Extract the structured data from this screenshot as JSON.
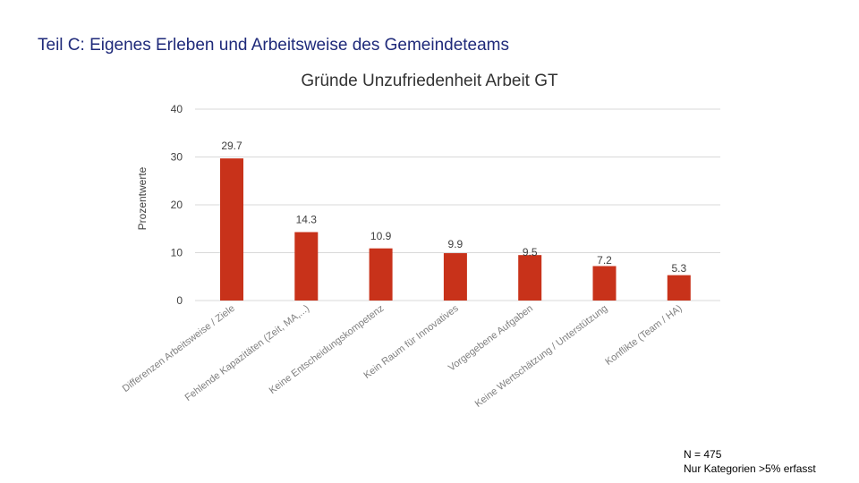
{
  "page": {
    "title": "Teil C: Eigenes Erleben und Arbeitsweise des Gemeindeteams"
  },
  "colors": {
    "bar": "#c8321a",
    "title": "#1f2a7a",
    "grid": "#d9d9d9",
    "axis_text": "#404040",
    "xlabel_text": "#7f7f7f"
  },
  "note": {
    "line1": "N = 475",
    "line2": "Nur Kategorien >5% erfasst"
  },
  "chart_data": {
    "type": "bar",
    "title": "Gründe Unzufriedenheit Arbeit GT",
    "xlabel": "",
    "ylabel": "Prozentwerte",
    "ylim": [
      0,
      40
    ],
    "yticks": [
      0,
      10,
      20,
      30,
      40
    ],
    "grid": true,
    "legend": "none",
    "categories": [
      "Differenzen Arbeitsweise / Ziele",
      "Fehlende Kapazitäten (Zeit, MA,...)",
      "Keine Entscheidungskompetenz",
      "Kein Raum für Innovatives",
      "Vorgegebene Aufgaben",
      "Keine Wertschätzung / Unterstützung",
      "Konflikte (Team / HA)"
    ],
    "values": [
      29.7,
      14.3,
      10.9,
      9.9,
      9.5,
      7.2,
      5.3
    ],
    "data_labels": [
      "29.7",
      "14.3",
      "10.9",
      "9.9",
      "9.5",
      "7.2",
      "5.3"
    ]
  }
}
